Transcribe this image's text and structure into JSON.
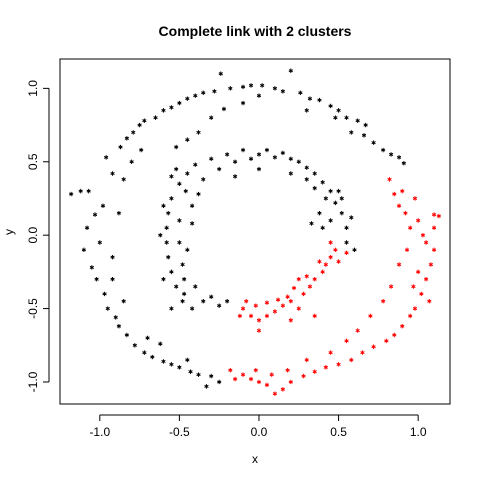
{
  "chart_data": {
    "type": "scatter",
    "title": "Complete link with 2 clusters",
    "xlabel": "x",
    "ylabel": "y",
    "xlim": [
      -1.25,
      1.2
    ],
    "ylim": [
      -1.15,
      1.2
    ],
    "x_ticks": [
      -1.0,
      -0.5,
      0.0,
      0.5,
      1.0
    ],
    "x_tick_labels": [
      "-1.0",
      "-0.5",
      "0.0",
      "0.5",
      "1.0"
    ],
    "y_ticks": [
      -1.0,
      -0.5,
      0.0,
      0.5,
      1.0
    ],
    "y_tick_labels": [
      "-1.0",
      "-0.5",
      "0.0",
      "0.5",
      "1.0"
    ],
    "grid": false,
    "marker": "star",
    "series": [
      {
        "color": "#000000",
        "points": [
          [
            -1.18,
            0.28
          ],
          [
            -1.12,
            0.3
          ],
          [
            -1.07,
            0.3
          ],
          [
            -1.03,
            0.14
          ],
          [
            -1.08,
            0.05
          ],
          [
            -1.1,
            -0.1
          ],
          [
            -1.05,
            -0.22
          ],
          [
            -1.02,
            -0.3
          ],
          [
            -0.95,
            -0.5
          ],
          [
            -0.9,
            -0.56
          ],
          [
            -0.96,
            0.53
          ],
          [
            -0.92,
            0.42
          ],
          [
            -0.87,
            0.6
          ],
          [
            -0.85,
            0.38
          ],
          [
            -0.83,
            0.66
          ],
          [
            -0.79,
            0.7
          ],
          [
            -0.75,
            0.75
          ],
          [
            -0.72,
            0.78
          ],
          [
            -0.65,
            0.8
          ],
          [
            -0.6,
            0.85
          ],
          [
            -0.55,
            0.87
          ],
          [
            -0.5,
            0.9
          ],
          [
            -0.45,
            0.93
          ],
          [
            -0.4,
            0.95
          ],
          [
            -0.35,
            0.97
          ],
          [
            -0.28,
            0.98
          ],
          [
            -0.24,
            1.1
          ],
          [
            -0.18,
            1.0
          ],
          [
            -0.1,
            1.01
          ],
          [
            -0.05,
            1.02
          ],
          [
            0.02,
            1.02
          ],
          [
            0.1,
            1.0
          ],
          [
            0.15,
            0.98
          ],
          [
            0.2,
            1.12
          ],
          [
            0.26,
            0.97
          ],
          [
            0.32,
            0.93
          ],
          [
            0.38,
            0.92
          ],
          [
            0.45,
            0.88
          ],
          [
            0.5,
            0.85
          ],
          [
            0.55,
            0.8
          ],
          [
            0.62,
            0.78
          ],
          [
            0.67,
            0.75
          ],
          [
            0.72,
            0.63
          ],
          [
            0.78,
            0.58
          ],
          [
            0.83,
            0.55
          ],
          [
            0.88,
            0.53
          ],
          [
            0.91,
            0.49
          ],
          [
            -0.98,
            0.2
          ],
          [
            -1.0,
            -0.05
          ],
          [
            -0.97,
            -0.4
          ],
          [
            -0.92,
            -0.3
          ],
          [
            -0.88,
            -0.62
          ],
          [
            -0.83,
            -0.68
          ],
          [
            -0.78,
            -0.75
          ],
          [
            -0.72,
            -0.8
          ],
          [
            -0.67,
            -0.83
          ],
          [
            -0.6,
            -0.86
          ],
          [
            -0.55,
            -0.88
          ],
          [
            -0.5,
            -0.9
          ],
          [
            -0.43,
            -0.93
          ],
          [
            -0.38,
            -0.95
          ],
          [
            -0.33,
            -1.03
          ],
          [
            -0.3,
            -0.96
          ],
          [
            -0.25,
            -1.0
          ],
          [
            -0.8,
            0.5
          ],
          [
            -0.74,
            0.58
          ],
          [
            -0.88,
            0.15
          ],
          [
            -0.92,
            -0.15
          ],
          [
            -0.85,
            -0.45
          ],
          [
            -0.7,
            -0.7
          ],
          [
            -0.62,
            -0.74
          ],
          [
            -0.45,
            -0.85
          ],
          [
            -0.52,
            0.6
          ],
          [
            -0.45,
            0.65
          ],
          [
            -0.38,
            0.7
          ],
          [
            -0.3,
            0.8
          ],
          [
            -0.22,
            0.86
          ],
          [
            -0.1,
            0.9
          ],
          [
            0.0,
            0.95
          ],
          [
            0.3,
            0.85
          ],
          [
            0.48,
            0.8
          ],
          [
            0.58,
            0.7
          ],
          [
            0.66,
            0.68
          ],
          [
            -0.55,
            0.25
          ],
          [
            -0.57,
            0.15
          ],
          [
            -0.58,
            0.05
          ],
          [
            -0.58,
            -0.05
          ],
          [
            -0.57,
            -0.15
          ],
          [
            -0.55,
            -0.25
          ],
          [
            -0.52,
            -0.35
          ],
          [
            -0.5,
            0.35
          ],
          [
            -0.45,
            0.42
          ],
          [
            -0.4,
            0.48
          ],
          [
            -0.35,
            0.38
          ],
          [
            -0.3,
            0.52
          ],
          [
            -0.25,
            0.45
          ],
          [
            -0.2,
            0.55
          ],
          [
            -0.15,
            0.5
          ],
          [
            -0.1,
            0.58
          ],
          [
            -0.05,
            0.52
          ],
          [
            0.0,
            0.55
          ],
          [
            0.05,
            0.58
          ],
          [
            0.1,
            0.53
          ],
          [
            0.15,
            0.56
          ],
          [
            0.2,
            0.52
          ],
          [
            0.25,
            0.5
          ],
          [
            0.3,
            0.46
          ],
          [
            0.35,
            0.42
          ],
          [
            0.4,
            0.36
          ],
          [
            0.45,
            0.3
          ],
          [
            0.48,
            0.22
          ],
          [
            0.52,
            0.15
          ],
          [
            0.55,
            0.05
          ],
          [
            0.55,
            -0.05
          ],
          [
            0.6,
            -0.1
          ],
          [
            0.5,
            0.3
          ],
          [
            0.42,
            0.25
          ],
          [
            0.38,
            0.15
          ],
          [
            0.45,
            0.1
          ],
          [
            0.4,
            0.05
          ],
          [
            -0.48,
            -0.45
          ],
          [
            -0.42,
            -0.5
          ],
          [
            -0.35,
            -0.45
          ],
          [
            -0.3,
            -0.42
          ],
          [
            -0.25,
            -0.48
          ],
          [
            -0.2,
            -0.45
          ],
          [
            -0.5,
            0.1
          ],
          [
            -0.45,
            -0.1
          ],
          [
            -0.48,
            -0.2
          ],
          [
            -0.42,
            0.2
          ],
          [
            -0.38,
            0.28
          ],
          [
            -0.52,
            0.45
          ],
          [
            -0.55,
            -0.5
          ],
          [
            -0.6,
            -0.3
          ],
          [
            -0.62,
            0.0
          ],
          [
            -0.6,
            0.2
          ],
          [
            -0.47,
            -0.3
          ],
          [
            -0.4,
            -0.35
          ],
          [
            -0.15,
            0.4
          ],
          [
            0.0,
            0.45
          ],
          [
            0.2,
            0.42
          ],
          [
            0.3,
            0.38
          ],
          [
            0.35,
            0.32
          ],
          [
            0.52,
            0.25
          ],
          [
            0.58,
            0.12
          ],
          [
            0.33,
            0.08
          ],
          [
            -0.42,
            0.08
          ],
          [
            -0.5,
            -0.05
          ],
          [
            -0.46,
            0.3
          ],
          [
            -0.55,
            0.4
          ],
          [
            -0.47,
            -0.4
          ]
        ]
      },
      {
        "color": "#ff0000",
        "points": [
          [
            0.82,
            0.38
          ],
          [
            0.85,
            0.28
          ],
          [
            0.88,
            0.2
          ],
          [
            0.92,
            0.15
          ],
          [
            0.95,
            0.05
          ],
          [
            1.0,
            0.1
          ],
          [
            1.05,
            -0.05
          ],
          [
            1.08,
            -0.2
          ],
          [
            1.1,
            0.14
          ],
          [
            1.05,
            -0.3
          ],
          [
            1.02,
            -0.4
          ],
          [
            0.98,
            -0.5
          ],
          [
            0.95,
            -0.55
          ],
          [
            0.9,
            -0.62
          ],
          [
            0.85,
            -0.68
          ],
          [
            0.8,
            -0.72
          ],
          [
            0.72,
            -0.76
          ],
          [
            0.65,
            -0.8
          ],
          [
            0.58,
            -0.85
          ],
          [
            0.5,
            -0.88
          ],
          [
            0.42,
            -0.9
          ],
          [
            0.35,
            -0.93
          ],
          [
            0.28,
            -0.96
          ],
          [
            0.2,
            -1.0
          ],
          [
            0.15,
            -1.05
          ],
          [
            0.1,
            -1.08
          ],
          [
            0.05,
            -1.02
          ],
          [
            0.0,
            -1.0
          ],
          [
            -0.05,
            -0.98
          ],
          [
            -0.1,
            -0.95
          ],
          [
            -0.15,
            -0.98
          ],
          [
            -0.18,
            -0.92
          ],
          [
            1.1,
            0.05
          ],
          [
            1.13,
            0.13
          ],
          [
            0.9,
            0.3
          ],
          [
            0.93,
            -0.1
          ],
          [
            0.88,
            -0.2
          ],
          [
            0.83,
            -0.35
          ],
          [
            0.78,
            -0.45
          ],
          [
            0.7,
            -0.55
          ],
          [
            0.62,
            -0.65
          ],
          [
            0.55,
            -0.72
          ],
          [
            0.45,
            -0.8
          ],
          [
            0.3,
            -0.85
          ],
          [
            0.18,
            -0.92
          ],
          [
            0.08,
            -0.95
          ],
          [
            -0.02,
            -0.92
          ],
          [
            1.0,
            -0.25
          ],
          [
            0.97,
            -0.35
          ],
          [
            1.07,
            -0.45
          ],
          [
            0.98,
            0.25
          ],
          [
            1.03,
            0.0
          ],
          [
            1.1,
            -0.1
          ],
          [
            -0.1,
            -0.5
          ],
          [
            -0.05,
            -0.55
          ],
          [
            0.0,
            -0.58
          ],
          [
            0.05,
            -0.55
          ],
          [
            0.1,
            -0.52
          ],
          [
            0.15,
            -0.48
          ],
          [
            0.2,
            -0.45
          ],
          [
            0.25,
            -0.5
          ],
          [
            0.28,
            -0.4
          ],
          [
            0.32,
            -0.35
          ],
          [
            0.35,
            -0.3
          ],
          [
            0.4,
            -0.25
          ],
          [
            0.42,
            -0.2
          ],
          [
            0.45,
            -0.15
          ],
          [
            0.48,
            -0.1
          ],
          [
            0.38,
            -0.18
          ],
          [
            0.3,
            -0.28
          ],
          [
            0.22,
            -0.36
          ],
          [
            0.18,
            -0.42
          ],
          [
            0.12,
            -0.44
          ],
          [
            0.05,
            -0.46
          ],
          [
            -0.02,
            -0.48
          ],
          [
            -0.08,
            -0.45
          ],
          [
            -0.12,
            -0.55
          ],
          [
            0.0,
            -0.65
          ],
          [
            0.2,
            -0.58
          ],
          [
            0.35,
            -0.55
          ],
          [
            0.25,
            -0.3
          ],
          [
            0.45,
            -0.05
          ],
          [
            0.5,
            -0.18
          ],
          [
            0.55,
            -0.12
          ]
        ]
      }
    ]
  }
}
